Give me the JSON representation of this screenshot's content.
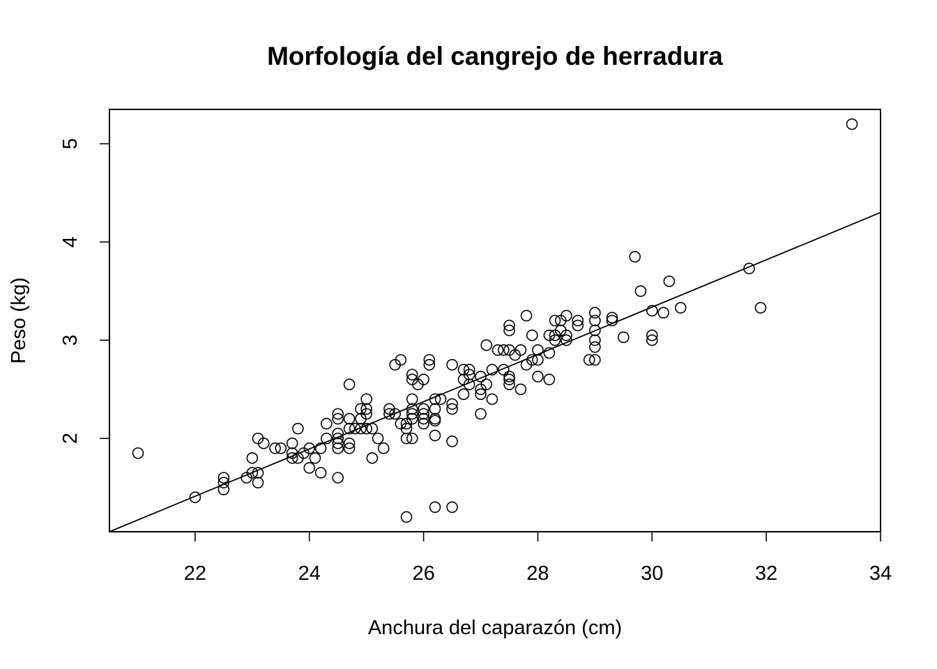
{
  "chart_data": {
    "type": "scatter",
    "title": "Morfología del cangrejo de herradura",
    "xlabel": "Anchura del caparazón (cm)",
    "ylabel": "Peso (kg)",
    "xlim": [
      20.5,
      34
    ],
    "ylim": [
      1.05,
      5.35
    ],
    "xticks": [
      22,
      24,
      26,
      28,
      30,
      32,
      34
    ],
    "yticks": [
      2,
      3,
      4,
      5
    ],
    "grid": false,
    "legend": "none",
    "fit_line": {
      "x": [
        20.5,
        34
      ],
      "y": [
        1.03,
        4.3
      ]
    },
    "points": [
      [
        21.0,
        1.85
      ],
      [
        22.0,
        1.4
      ],
      [
        22.5,
        1.6
      ],
      [
        22.5,
        1.55
      ],
      [
        22.5,
        1.48
      ],
      [
        22.9,
        1.6
      ],
      [
        23.0,
        1.8
      ],
      [
        23.0,
        1.65
      ],
      [
        23.1,
        2.0
      ],
      [
        23.1,
        1.65
      ],
      [
        23.1,
        1.55
      ],
      [
        23.2,
        1.95
      ],
      [
        23.4,
        1.9
      ],
      [
        23.5,
        1.9
      ],
      [
        23.7,
        1.95
      ],
      [
        23.7,
        1.85
      ],
      [
        23.7,
        1.8
      ],
      [
        23.8,
        2.1
      ],
      [
        23.8,
        1.8
      ],
      [
        23.9,
        1.85
      ],
      [
        24.0,
        1.9
      ],
      [
        24.0,
        1.7
      ],
      [
        24.1,
        1.8
      ],
      [
        24.2,
        1.9
      ],
      [
        24.2,
        1.65
      ],
      [
        24.3,
        2.15
      ],
      [
        24.3,
        2.0
      ],
      [
        24.5,
        2.25
      ],
      [
        24.5,
        2.2
      ],
      [
        24.5,
        2.05
      ],
      [
        24.5,
        2.0
      ],
      [
        24.5,
        1.95
      ],
      [
        24.5,
        1.9
      ],
      [
        24.5,
        1.6
      ],
      [
        24.7,
        2.55
      ],
      [
        24.7,
        2.2
      ],
      [
        24.7,
        2.1
      ],
      [
        24.7,
        1.95
      ],
      [
        24.7,
        1.9
      ],
      [
        24.8,
        2.1
      ],
      [
        24.9,
        2.3
      ],
      [
        24.9,
        2.2
      ],
      [
        24.9,
        2.1
      ],
      [
        25.0,
        2.4
      ],
      [
        25.0,
        2.3
      ],
      [
        25.0,
        2.25
      ],
      [
        25.0,
        2.1
      ],
      [
        25.1,
        2.1
      ],
      [
        25.1,
        1.8
      ],
      [
        25.2,
        2.0
      ],
      [
        25.3,
        1.9
      ],
      [
        25.4,
        2.3
      ],
      [
        25.4,
        2.25
      ],
      [
        25.5,
        2.75
      ],
      [
        25.5,
        2.25
      ],
      [
        25.6,
        2.8
      ],
      [
        25.6,
        2.15
      ],
      [
        25.7,
        2.15
      ],
      [
        25.7,
        2.1
      ],
      [
        25.7,
        2.0
      ],
      [
        25.7,
        1.2
      ],
      [
        25.8,
        2.65
      ],
      [
        25.8,
        2.6
      ],
      [
        25.8,
        2.4
      ],
      [
        25.8,
        2.3
      ],
      [
        25.8,
        2.25
      ],
      [
        25.8,
        2.2
      ],
      [
        25.8,
        2.0
      ],
      [
        25.9,
        2.55
      ],
      [
        26.0,
        2.6
      ],
      [
        26.0,
        2.3
      ],
      [
        26.0,
        2.25
      ],
      [
        26.0,
        2.2
      ],
      [
        26.0,
        2.15
      ],
      [
        26.1,
        2.8
      ],
      [
        26.1,
        2.75
      ],
      [
        26.2,
        2.4
      ],
      [
        26.2,
        2.3
      ],
      [
        26.2,
        2.2
      ],
      [
        26.2,
        2.18
      ],
      [
        26.2,
        2.03
      ],
      [
        26.2,
        1.3
      ],
      [
        26.3,
        2.4
      ],
      [
        26.5,
        2.75
      ],
      [
        26.5,
        2.35
      ],
      [
        26.5,
        2.3
      ],
      [
        26.5,
        1.97
      ],
      [
        26.5,
        1.3
      ],
      [
        26.7,
        2.7
      ],
      [
        26.7,
        2.6
      ],
      [
        26.7,
        2.45
      ],
      [
        26.8,
        2.7
      ],
      [
        26.8,
        2.65
      ],
      [
        26.8,
        2.55
      ],
      [
        27.0,
        2.63
      ],
      [
        27.0,
        2.5
      ],
      [
        27.0,
        2.45
      ],
      [
        27.0,
        2.25
      ],
      [
        27.1,
        2.95
      ],
      [
        27.1,
        2.55
      ],
      [
        27.2,
        2.7
      ],
      [
        27.2,
        2.4
      ],
      [
        27.3,
        2.9
      ],
      [
        27.4,
        2.9
      ],
      [
        27.4,
        2.7
      ],
      [
        27.5,
        3.15
      ],
      [
        27.5,
        3.1
      ],
      [
        27.5,
        2.9
      ],
      [
        27.5,
        2.63
      ],
      [
        27.5,
        2.6
      ],
      [
        27.5,
        2.55
      ],
      [
        27.6,
        2.85
      ],
      [
        27.7,
        2.9
      ],
      [
        27.7,
        2.5
      ],
      [
        27.8,
        3.25
      ],
      [
        27.8,
        2.75
      ],
      [
        27.9,
        3.05
      ],
      [
        27.9,
        2.8
      ],
      [
        28.0,
        2.9
      ],
      [
        28.0,
        2.8
      ],
      [
        28.0,
        2.63
      ],
      [
        28.2,
        3.05
      ],
      [
        28.2,
        2.87
      ],
      [
        28.2,
        2.6
      ],
      [
        28.3,
        3.2
      ],
      [
        28.3,
        3.05
      ],
      [
        28.3,
        3.0
      ],
      [
        28.4,
        3.2
      ],
      [
        28.4,
        3.1
      ],
      [
        28.5,
        3.25
      ],
      [
        28.5,
        3.05
      ],
      [
        28.5,
        3.0
      ],
      [
        28.7,
        3.2
      ],
      [
        28.7,
        3.15
      ],
      [
        28.9,
        2.8
      ],
      [
        29.0,
        3.28
      ],
      [
        29.0,
        3.2
      ],
      [
        29.0,
        3.1
      ],
      [
        29.0,
        3.0
      ],
      [
        29.0,
        2.93
      ],
      [
        29.0,
        2.8
      ],
      [
        29.3,
        3.23
      ],
      [
        29.3,
        3.2
      ],
      [
        29.5,
        3.03
      ],
      [
        29.7,
        3.85
      ],
      [
        29.8,
        3.5
      ],
      [
        30.0,
        3.3
      ],
      [
        30.0,
        3.05
      ],
      [
        30.0,
        3.0
      ],
      [
        30.2,
        3.28
      ],
      [
        30.3,
        3.6
      ],
      [
        30.5,
        3.33
      ],
      [
        31.7,
        3.73
      ],
      [
        31.9,
        3.33
      ],
      [
        33.5,
        5.2
      ]
    ]
  }
}
